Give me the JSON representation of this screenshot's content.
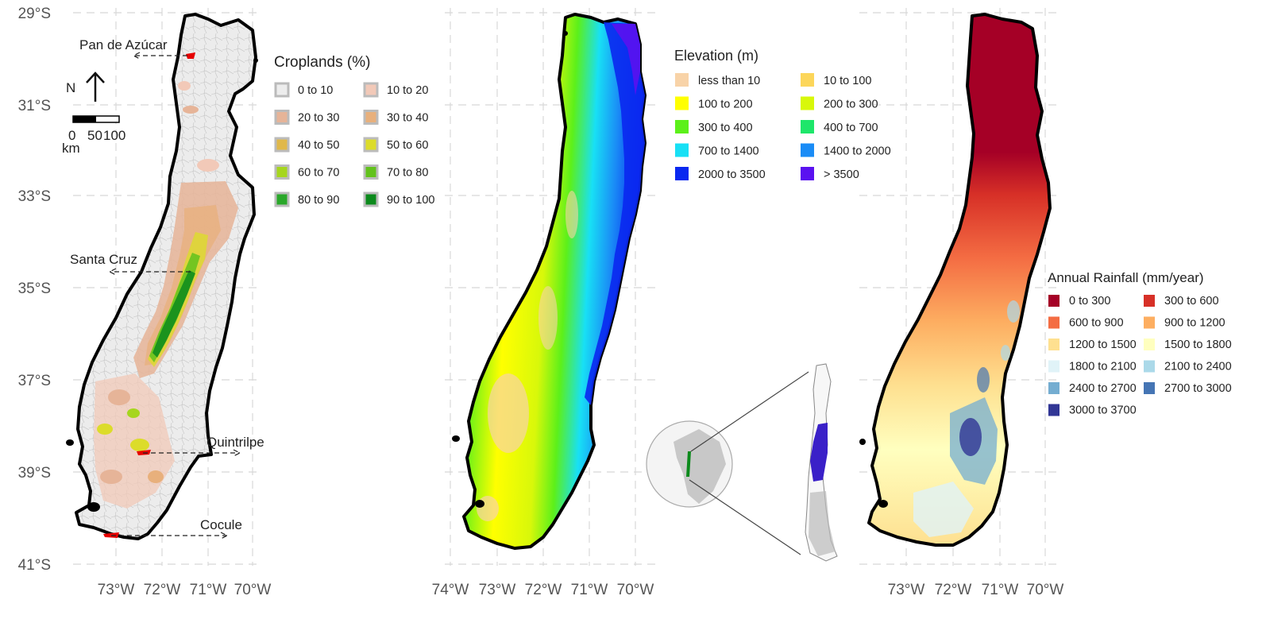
{
  "y_axis_labels": [
    "29°S",
    "31°S",
    "33°S",
    "35°S",
    "37°S",
    "39°S",
    "41°S"
  ],
  "panels": [
    {
      "id": "croplands",
      "x_axis_labels": [
        "73°W",
        "72°W",
        "71°W",
        "70°W"
      ]
    },
    {
      "id": "elevation",
      "x_axis_labels": [
        "74°W",
        "73°W",
        "72°W",
        "71°W",
        "70°W"
      ]
    },
    {
      "id": "rainfall",
      "x_axis_labels": [
        "73°W",
        "72°W",
        "71°W",
        "70°W"
      ]
    }
  ],
  "croplands_legend": {
    "title": "Croplands (%)",
    "items": [
      {
        "label": "0 to 10",
        "color": "#ededed"
      },
      {
        "label": "10 to 20",
        "color": "#f2c9b8"
      },
      {
        "label": "20 to 30",
        "color": "#e6b498"
      },
      {
        "label": "30 to 40",
        "color": "#e8b07c"
      },
      {
        "label": "40 to 50",
        "color": "#e0b84a"
      },
      {
        "label": "50 to 60",
        "color": "#dcdc2a"
      },
      {
        "label": "60 to 70",
        "color": "#a6d61e"
      },
      {
        "label": "70 to 80",
        "color": "#62c21c"
      },
      {
        "label": "80 to 90",
        "color": "#2aa82a"
      },
      {
        "label": "90 to 100",
        "color": "#0c8a1c"
      }
    ]
  },
  "elevation_legend": {
    "title": "Elevation (m)",
    "items": [
      {
        "label": "less than 10",
        "color": "#f8d3a8"
      },
      {
        "label": "10 to 100",
        "color": "#fcd65a"
      },
      {
        "label": "100 to 200",
        "color": "#ffff00"
      },
      {
        "label": "200 to 300",
        "color": "#d8f80a"
      },
      {
        "label": "300 to 400",
        "color": "#5cf01a"
      },
      {
        "label": "400 to 700",
        "color": "#1ee66a"
      },
      {
        "label": "700 to 1400",
        "color": "#18e0f5"
      },
      {
        "label": "1400 to 2000",
        "color": "#1a8cf6"
      },
      {
        "label": "2000 to 3500",
        "color": "#0a28f0"
      },
      {
        "label": "> 3500",
        "color": "#5a12f0"
      }
    ]
  },
  "rainfall_legend": {
    "title": "Annual Rainfall (mm/year)",
    "items": [
      {
        "label": "0 to 300",
        "color": "#a50026"
      },
      {
        "label": "300 to 600",
        "color": "#d73027"
      },
      {
        "label": "600 to 900",
        "color": "#f46d43"
      },
      {
        "label": "900 to 1200",
        "color": "#fdae61"
      },
      {
        "label": "1200 to 1500",
        "color": "#fee090"
      },
      {
        "label": "1500 to 1800",
        "color": "#ffffbf"
      },
      {
        "label": "1800 to 2100",
        "color": "#e0f3f8"
      },
      {
        "label": "2100 to 2400",
        "color": "#abd9e9"
      },
      {
        "label": "2400 to 2700",
        "color": "#74add1"
      },
      {
        "label": "2700 to 3000",
        "color": "#4575b4"
      },
      {
        "label": "3000 to 3700",
        "color": "#313695"
      }
    ]
  },
  "site_labels": [
    "Pan de Azúcar",
    "Santa Cruz",
    "Quintrilpe",
    "Cocule"
  ],
  "north_arrow": {
    "label": "N"
  },
  "scale_bar": {
    "ticks": [
      "0",
      "50",
      "100"
    ],
    "unit": "km"
  }
}
